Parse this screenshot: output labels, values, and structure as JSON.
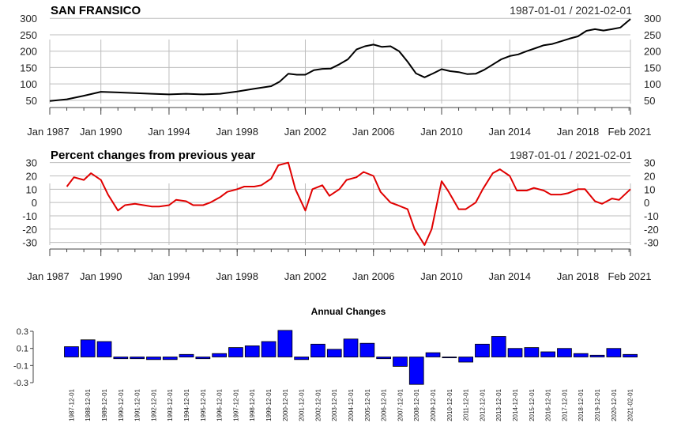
{
  "chart_data": [
    {
      "type": "line",
      "title": "SAN FRANSICO",
      "date_range": "1987-01-01 / 2021-02-01",
      "x_tick_labels": [
        "Jan 1987",
        "Jan 1990",
        "Jan 1994",
        "Jan 1998",
        "Jan 2002",
        "Jan 2006",
        "Jan 2010",
        "Jan 2014",
        "Jan 2018",
        "Feb 2021"
      ],
      "x_tick_dates": [
        "1987-01",
        "1990-01",
        "1994-01",
        "1998-01",
        "2002-01",
        "2006-01",
        "2010-01",
        "2014-01",
        "2018-01",
        "2021-02"
      ],
      "y_ticks": [
        50,
        100,
        150,
        200,
        250,
        300
      ],
      "ylim": [
        40,
        303
      ],
      "xlim": [
        "1987-01",
        "2021-02"
      ],
      "grid": true,
      "series": [
        {
          "color": "#000000",
          "x": [
            "1987-01",
            "1988-01",
            "1989-01",
            "1990-01",
            "1991-01",
            "1992-01",
            "1993-01",
            "1994-01",
            "1995-01",
            "1996-01",
            "1997-01",
            "1998-01",
            "1999-01",
            "2000-01",
            "2000-07",
            "2001-01",
            "2001-07",
            "2002-01",
            "2002-07",
            "2003-01",
            "2003-07",
            "2004-01",
            "2004-07",
            "2005-01",
            "2005-07",
            "2006-01",
            "2006-07",
            "2007-01",
            "2007-07",
            "2008-01",
            "2008-07",
            "2009-01",
            "2009-07",
            "2010-01",
            "2010-07",
            "2011-01",
            "2011-07",
            "2012-01",
            "2012-07",
            "2013-01",
            "2013-07",
            "2014-01",
            "2014-07",
            "2015-01",
            "2015-07",
            "2016-01",
            "2016-07",
            "2017-01",
            "2017-07",
            "2018-01",
            "2018-07",
            "2019-01",
            "2019-07",
            "2020-01",
            "2020-07",
            "2021-02"
          ],
          "y": [
            48,
            53,
            64,
            76,
            74,
            72,
            70,
            68,
            70,
            68,
            70,
            77,
            85,
            93,
            107,
            131,
            128,
            128,
            142,
            146,
            147,
            160,
            175,
            205,
            215,
            220,
            213,
            215,
            200,
            168,
            132,
            120,
            132,
            145,
            139,
            136,
            130,
            131,
            143,
            159,
            175,
            185,
            190,
            200,
            209,
            218,
            222,
            230,
            238,
            245,
            262,
            267,
            263,
            267,
            272,
            298
          ]
        }
      ]
    },
    {
      "type": "line",
      "title": "Percent changes from previous year",
      "date_range": "1987-01-01 / 2021-02-01",
      "x_tick_labels": [
        "Jan 1987",
        "Jan 1990",
        "Jan 1994",
        "Jan 1998",
        "Jan 2002",
        "Jan 2006",
        "Jan 2010",
        "Jan 2014",
        "Jan 2018",
        "Feb 2021"
      ],
      "x_tick_dates": [
        "1987-01",
        "1990-01",
        "1994-01",
        "1998-01",
        "2002-01",
        "2006-01",
        "2010-01",
        "2014-01",
        "2018-01",
        "2021-02"
      ],
      "y_ticks": [
        30,
        20,
        10,
        0,
        -10,
        -20,
        -30
      ],
      "ylim": [
        -32,
        31
      ],
      "xlim": [
        "1987-01",
        "2021-02"
      ],
      "grid": true,
      "series": [
        {
          "color": "#e00000",
          "x": [
            "1988-01",
            "1988-06",
            "1989-01",
            "1989-06",
            "1990-01",
            "1990-06",
            "1991-01",
            "1991-06",
            "1992-01",
            "1993-01",
            "1993-06",
            "1994-01",
            "1994-06",
            "1995-01",
            "1995-06",
            "1996-01",
            "1996-06",
            "1997-01",
            "1997-06",
            "1998-01",
            "1998-06",
            "1999-01",
            "1999-06",
            "2000-01",
            "2000-06",
            "2001-01",
            "2001-06",
            "2002-01",
            "2002-06",
            "2003-01",
            "2003-06",
            "2004-01",
            "2004-06",
            "2005-01",
            "2005-06",
            "2006-01",
            "2006-06",
            "2007-01",
            "2007-06",
            "2008-01",
            "2008-06",
            "2009-01",
            "2009-06",
            "2010-01",
            "2010-06",
            "2011-01",
            "2011-06",
            "2012-01",
            "2012-06",
            "2013-01",
            "2013-06",
            "2014-01",
            "2014-06",
            "2015-01",
            "2015-06",
            "2016-01",
            "2016-06",
            "2017-01",
            "2017-06",
            "2018-01",
            "2018-06",
            "2019-01",
            "2019-06",
            "2020-01",
            "2020-06",
            "2021-02"
          ],
          "y": [
            12,
            19,
            17,
            22,
            17,
            6,
            -6,
            -2,
            -1,
            -3,
            -3,
            -2,
            2,
            1,
            -2,
            -2,
            0,
            4,
            8,
            10,
            12,
            12,
            13,
            18,
            28,
            30,
            10,
            -6,
            10,
            13,
            5,
            10,
            17,
            19,
            23,
            20,
            8,
            0,
            -2,
            -5,
            -20,
            -32,
            -20,
            16,
            8,
            -5,
            -5,
            0,
            10,
            22,
            25,
            20,
            9,
            9,
            11,
            9,
            6,
            6,
            7,
            10,
            10,
            1,
            -1,
            3,
            2,
            10
          ]
        }
      ]
    },
    {
      "type": "bar",
      "title": "Annual Changes",
      "categories": [
        "1987-12-01",
        "1988-12-01",
        "1989-12-01",
        "1990-12-01",
        "1991-12-01",
        "1992-12-01",
        "1993-12-01",
        "1994-12-01",
        "1995-12-01",
        "1996-12-01",
        "1997-12-01",
        "1998-12-01",
        "1999-12-01",
        "2000-12-01",
        "2001-12-01",
        "2002-12-01",
        "2003-12-01",
        "2004-12-01",
        "2005-12-01",
        "2006-12-01",
        "2007-12-01",
        "2008-12-01",
        "2009-12-01",
        "2010-12-01",
        "2011-12-01",
        "2012-12-01",
        "2013-12-01",
        "2014-12-01",
        "2015-12-01",
        "2016-12-01",
        "2017-12-01",
        "2018-12-01",
        "2019-12-01",
        "2020-12-01",
        "2021-02-01"
      ],
      "values": [
        0.12,
        0.2,
        0.18,
        -0.02,
        -0.02,
        -0.03,
        -0.03,
        0.03,
        -0.02,
        0.04,
        0.11,
        0.13,
        0.18,
        0.31,
        -0.03,
        0.15,
        0.09,
        0.21,
        0.16,
        -0.02,
        -0.11,
        -0.32,
        0.05,
        -0.01,
        -0.06,
        0.15,
        0.24,
        0.1,
        0.11,
        0.06,
        0.1,
        0.04,
        0.02,
        0.1,
        0.03
      ],
      "y_ticks": [
        0.3,
        0.1,
        -0.1,
        -0.3
      ],
      "y_tick_labels": [
        "0.3",
        "0.1",
        "-0.1",
        "-0.3"
      ],
      "ylim": [
        -0.3,
        0.3
      ],
      "bar_color": "#0000ff"
    }
  ]
}
